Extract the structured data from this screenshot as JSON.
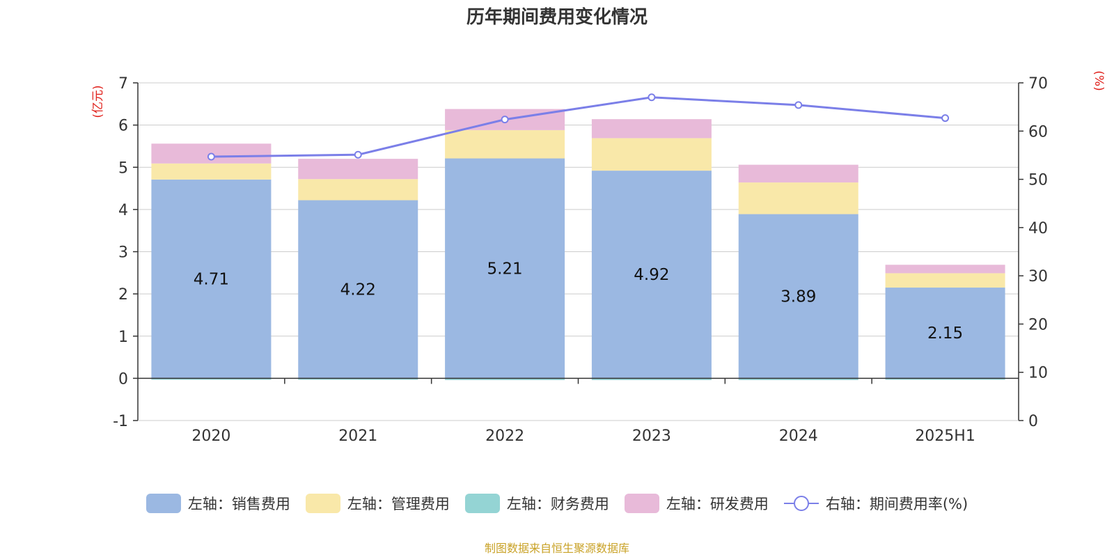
{
  "chart_data": {
    "type": "bar",
    "title": "历年期间费用变化情况",
    "categories": [
      "2020",
      "2021",
      "2022",
      "2023",
      "2024",
      "2025H1"
    ],
    "stacked": true,
    "left_axis": {
      "unit_label": "(亿元)",
      "range": [
        -1,
        7
      ],
      "ticks": [
        "7",
        "6",
        "5",
        "4",
        "3",
        "2",
        "1",
        "0",
        "-1"
      ]
    },
    "right_axis": {
      "unit_label": "(%)",
      "range": [
        0,
        70
      ],
      "ticks": [
        "70",
        "60",
        "50",
        "40",
        "30",
        "20",
        "10",
        "0"
      ]
    },
    "series": [
      {
        "name": "左轴：销售费用",
        "axis": "left",
        "kind": "bar",
        "color": "#9bb8e2",
        "values": [
          4.71,
          4.22,
          5.21,
          4.92,
          3.89,
          2.15
        ],
        "value_labels": [
          "4.71",
          "4.22",
          "5.21",
          "4.92",
          "3.89",
          "2.15"
        ]
      },
      {
        "name": "左轴：管理费用",
        "axis": "left",
        "kind": "bar",
        "color": "#f9e8a9",
        "values": [
          0.38,
          0.5,
          0.67,
          0.77,
          0.75,
          0.34
        ]
      },
      {
        "name": "左轴：财务费用",
        "axis": "left",
        "kind": "bar",
        "color": "#94d4d4",
        "values": [
          -0.03,
          -0.02,
          -0.04,
          -0.04,
          -0.04,
          -0.02
        ]
      },
      {
        "name": "左轴：研发费用",
        "axis": "left",
        "kind": "bar",
        "color": "#e8bad9",
        "values": [
          0.47,
          0.48,
          0.5,
          0.45,
          0.42,
          0.2
        ]
      },
      {
        "name": "右轴：期间费用率(%)",
        "axis": "right",
        "kind": "line",
        "color": "#7b7fe8",
        "values": [
          54.7,
          55.1,
          62.4,
          67.0,
          65.4,
          62.7
        ]
      }
    ],
    "grid": true,
    "legend_position": "bottom"
  },
  "source": "制图数据来自恒生聚源数据库"
}
